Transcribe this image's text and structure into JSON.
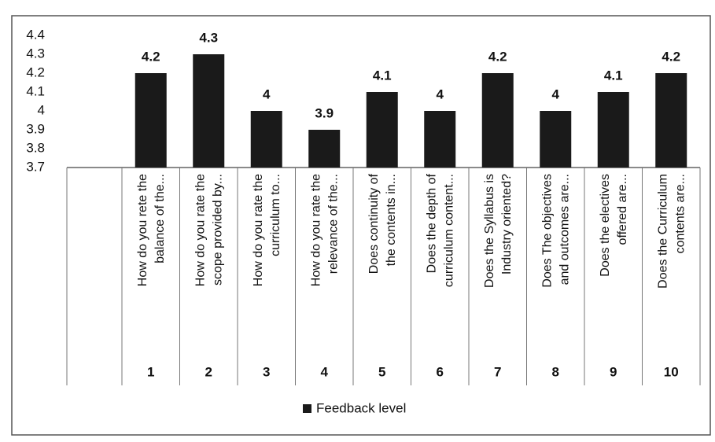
{
  "chart_data": {
    "type": "bar",
    "categories": [
      "1",
      "2",
      "3",
      "4",
      "5",
      "6",
      "7",
      "8",
      "9",
      "10"
    ],
    "category_descriptions": [
      [
        "How do you rete the",
        "balance of the..."
      ],
      [
        "How do you rate the",
        "scope provided by..."
      ],
      [
        "How do you rate the",
        "curriculum to..."
      ],
      [
        "How do you rate the",
        "relevance of the..."
      ],
      [
        "Does continuity of",
        "the contents in..."
      ],
      [
        "Does the depth of",
        "curriculum content..."
      ],
      [
        "Does the Syllabus is",
        "Industry oriented?"
      ],
      [
        "Does The objectives",
        "and outcomes are..."
      ],
      [
        "Does the electives",
        "offered are..."
      ],
      [
        "Does the Curriculum",
        "contents are..."
      ]
    ],
    "series": [
      {
        "name": "Feedback level",
        "color": "#1a1a1a",
        "values": [
          4.2,
          4.3,
          4,
          3.9,
          4.1,
          4,
          4.2,
          4,
          4.1,
          4.2
        ]
      }
    ],
    "ylim": [
      3.7,
      4.4
    ],
    "yticks": [
      3.7,
      3.8,
      3.9,
      4,
      4.1,
      4.2,
      4.3,
      4.4
    ],
    "legend": "bottom"
  }
}
